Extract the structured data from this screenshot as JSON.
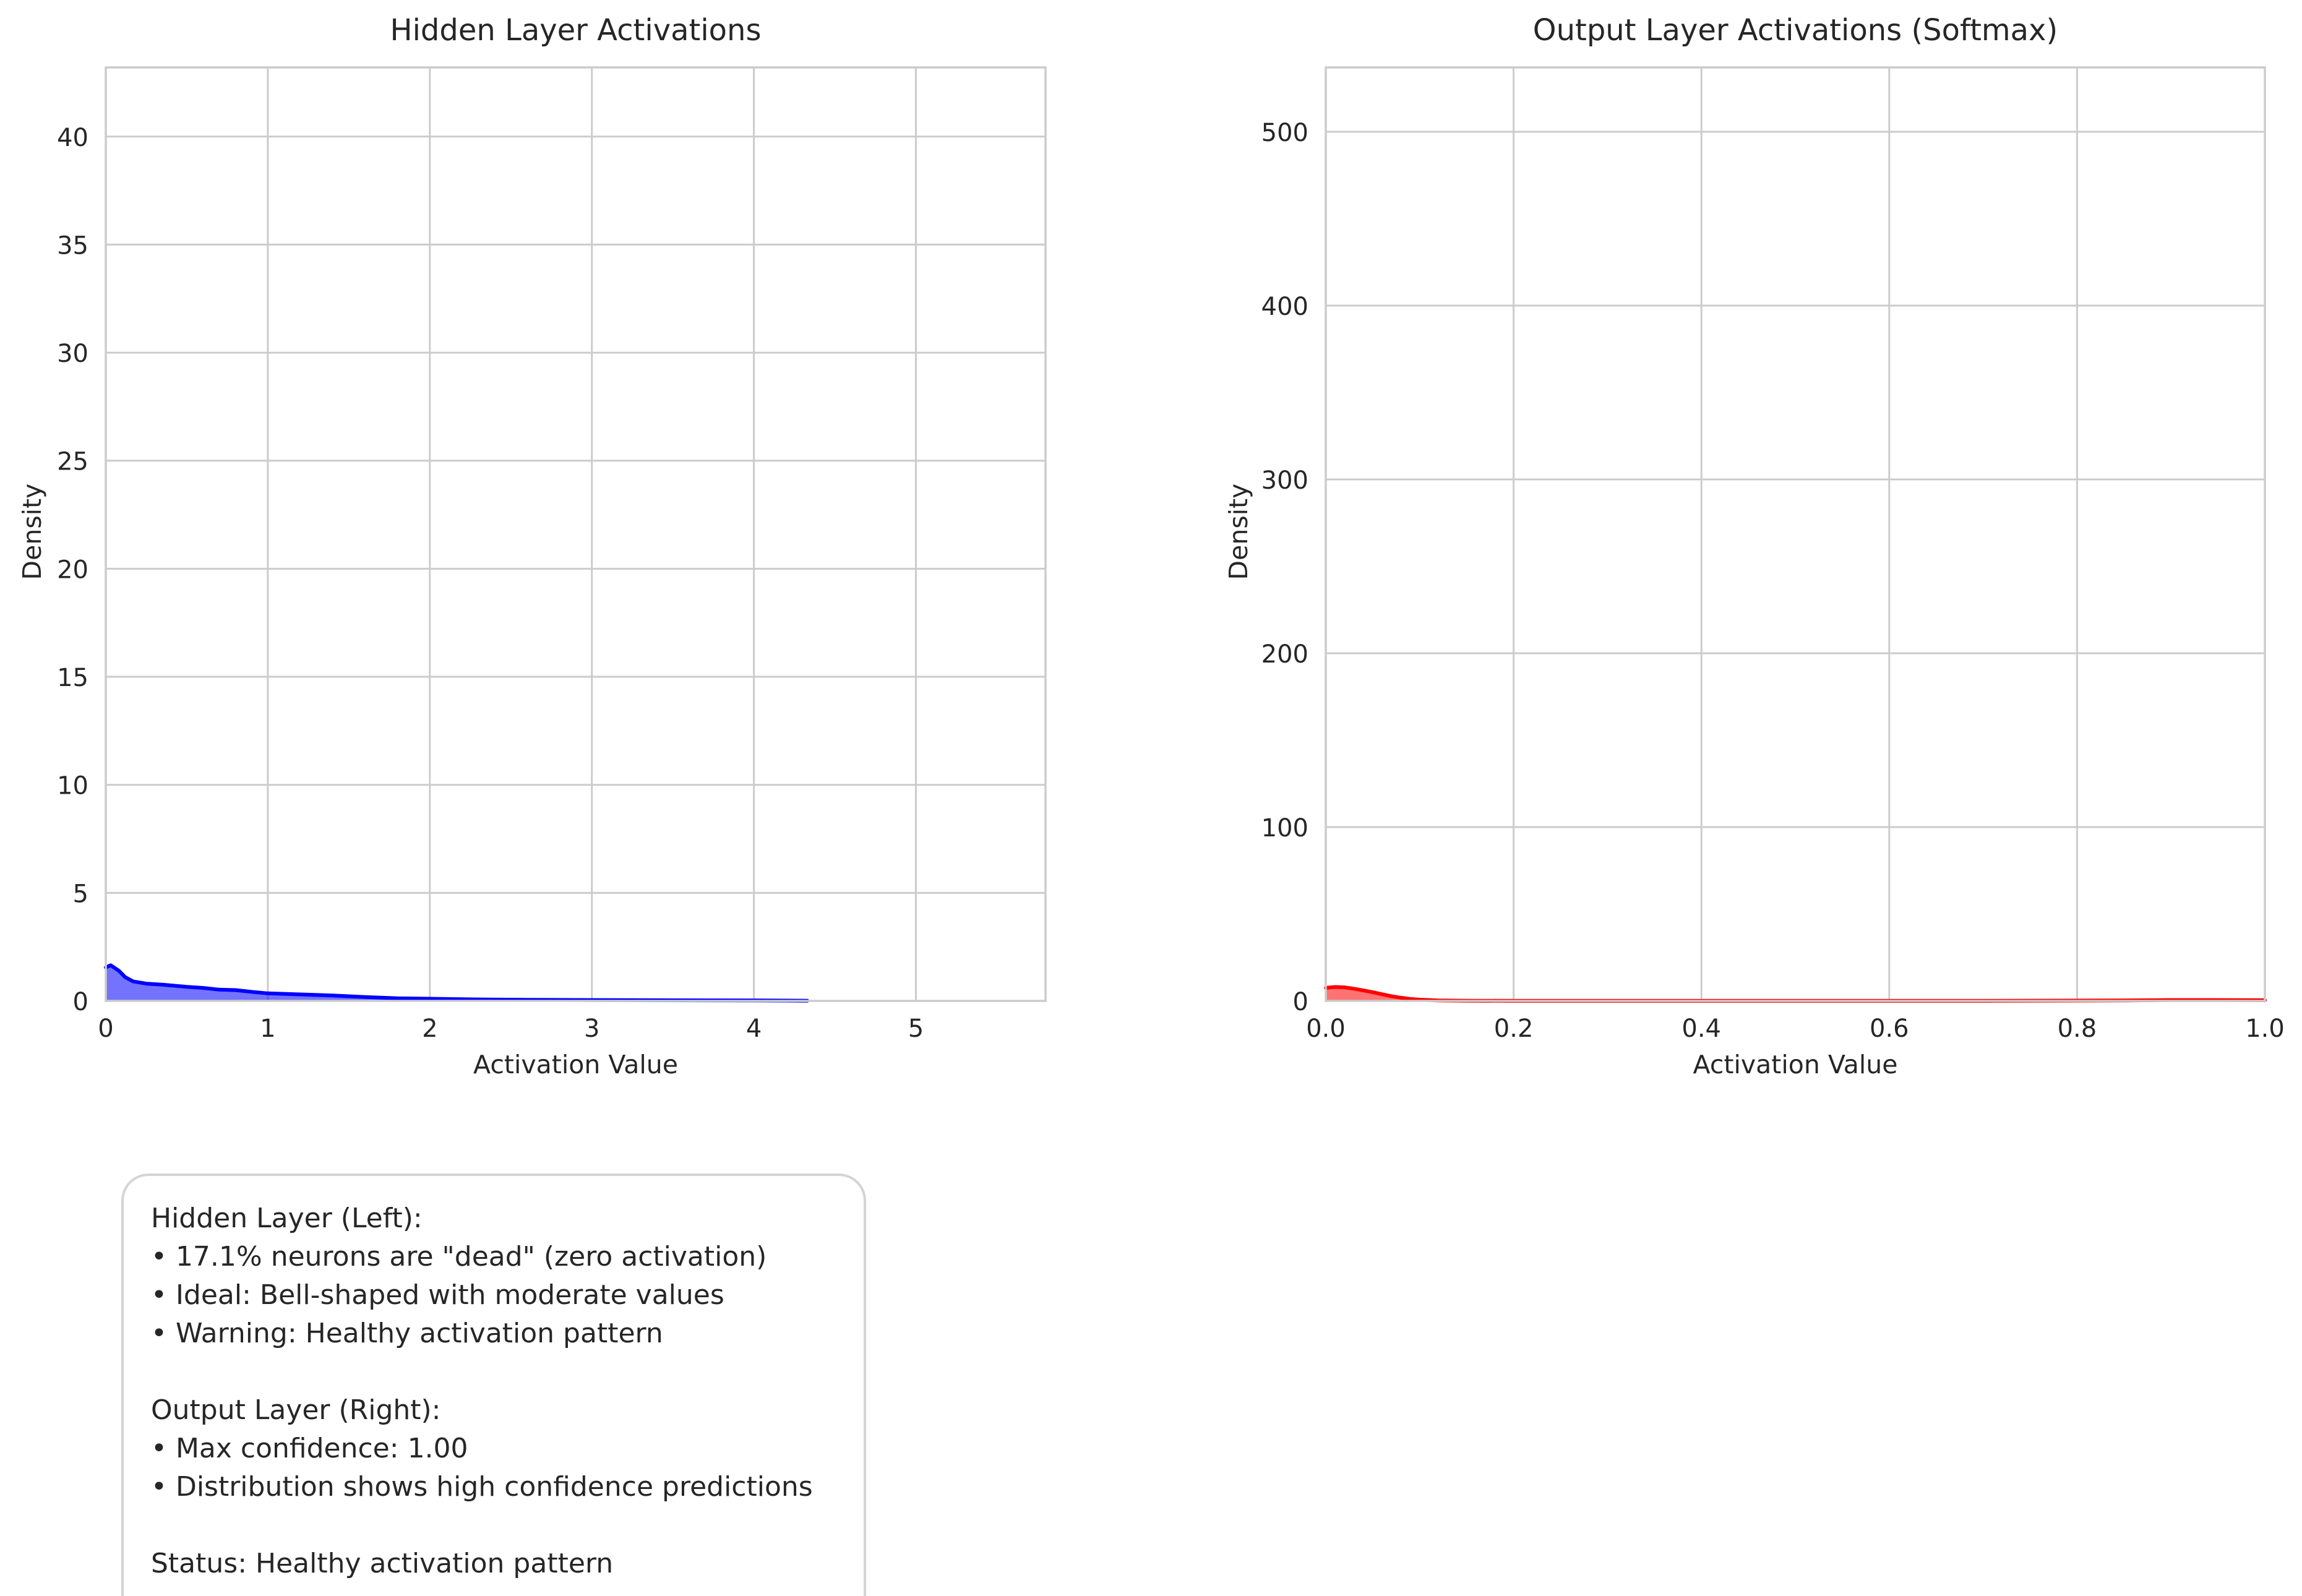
{
  "chart_data": [
    {
      "type": "area",
      "title": "Hidden Layer Activations",
      "xlabel": "Activation Value",
      "ylabel": "Density",
      "xlim": [
        0,
        5.8
      ],
      "ylim": [
        0,
        43.2
      ],
      "grid": true,
      "xticks": [
        0,
        1,
        2,
        3,
        4,
        5
      ],
      "yticks": [
        0,
        5,
        10,
        15,
        20,
        25,
        30,
        35,
        40
      ],
      "color": "#0000ff",
      "series": [
        {
          "x": [
            0,
            0.03,
            0.08,
            0.12,
            0.17,
            0.25,
            0.35,
            0.5,
            0.6,
            0.7,
            0.8,
            0.9,
            1.0,
            1.2,
            1.4,
            1.6,
            1.8,
            2.0,
            2.3,
            2.6,
            3.0,
            3.5,
            4.0,
            4.33
          ],
          "values": [
            1.55,
            1.65,
            1.4,
            1.1,
            0.9,
            0.8,
            0.75,
            0.65,
            0.6,
            0.52,
            0.5,
            0.42,
            0.35,
            0.3,
            0.25,
            0.18,
            0.12,
            0.1,
            0.07,
            0.05,
            0.04,
            0.03,
            0.02,
            0.01
          ]
        }
      ]
    },
    {
      "type": "area",
      "title": "Output Layer Activations (Softmax)",
      "xlabel": "Activation Value",
      "ylabel": "Density",
      "xlim": [
        0,
        1.0
      ],
      "ylim": [
        0,
        537
      ],
      "grid": true,
      "xticks": [
        0.0,
        0.2,
        0.4,
        0.6,
        0.8,
        1.0
      ],
      "yticks": [
        0,
        100,
        200,
        300,
        400,
        500
      ],
      "color": "#ff0000",
      "series": [
        {
          "x": [
            0,
            0.01,
            0.02,
            0.03,
            0.04,
            0.05,
            0.06,
            0.07,
            0.08,
            0.09,
            0.1,
            0.12,
            0.15,
            0.2,
            0.3,
            0.5,
            0.7,
            0.85,
            0.9,
            0.95,
            1.0
          ],
          "values": [
            7.5,
            8,
            7.8,
            7,
            6,
            5,
            3.8,
            2.7,
            1.8,
            1.1,
            0.7,
            0.3,
            0.1,
            0.05,
            0.02,
            0.02,
            0.05,
            0.3,
            0.5,
            0.5,
            0.4
          ]
        }
      ]
    }
  ],
  "info_box": {
    "lines": [
      "Hidden Layer (Left):",
      "• 17.1% neurons are \"dead\" (zero activation)",
      "• Ideal: Bell-shaped with moderate values",
      "• Warning: Healthy activation pattern",
      "",
      "Output Layer (Right):",
      "• Max confidence: 1.00",
      "• Distribution shows high confidence predictions",
      "",
      "Status: Healthy activation pattern"
    ]
  }
}
